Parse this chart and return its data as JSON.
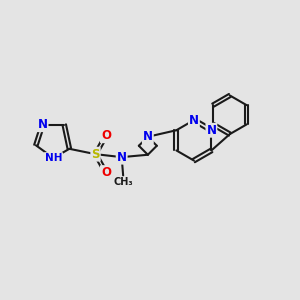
{
  "bg_color": "#e4e4e4",
  "bond_color": "#1a1a1a",
  "bond_width": 1.5,
  "atom_colors": {
    "N": "#0000ee",
    "S": "#b8b800",
    "O": "#ee0000",
    "H": "#009999",
    "C": "#1a1a1a"
  },
  "font_size": 8.5
}
